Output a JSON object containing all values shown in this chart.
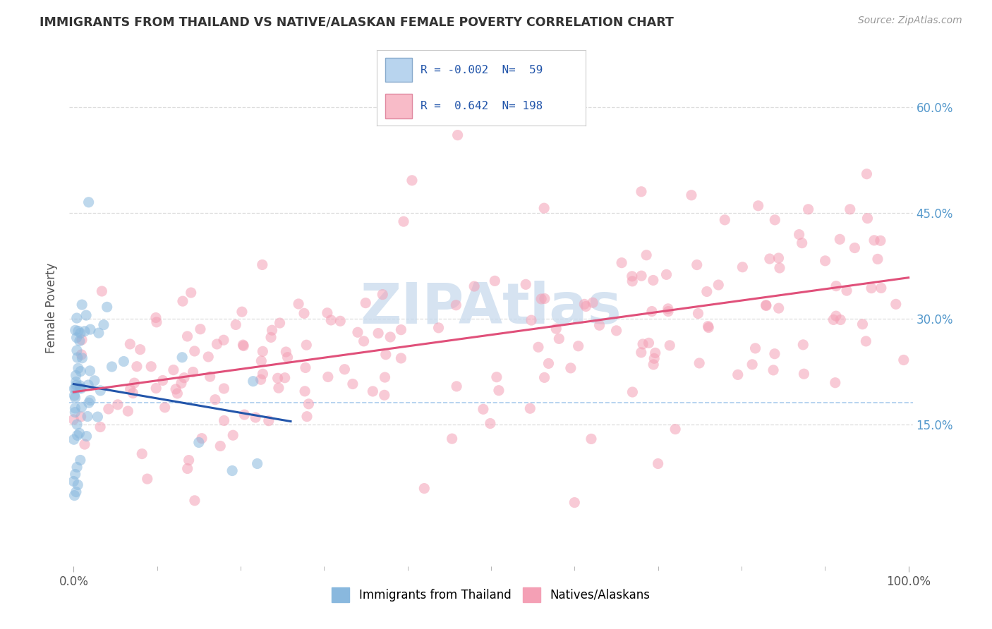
{
  "title": "IMMIGRANTS FROM THAILAND VS NATIVE/ALASKAN FEMALE POVERTY CORRELATION CHART",
  "source": "Source: ZipAtlas.com",
  "ylabel": "Female Poverty",
  "blue_scatter_color": "#89b8de",
  "pink_scatter_color": "#f4a0b5",
  "blue_line_color": "#2255aa",
  "pink_line_color": "#e0507a",
  "dashed_line_color": "#aaccee",
  "watermark": "ZIPAtlas",
  "watermark_color": "#c5d8ec",
  "background_color": "#ffffff",
  "right_tick_color": "#5599cc",
  "ytick_vals": [
    0.15,
    0.3,
    0.45,
    0.6
  ],
  "ytick_labels": [
    "15.0%",
    "30.0%",
    "45.0%",
    "60.0%"
  ],
  "ylim": [
    -0.05,
    0.68
  ],
  "xlim": [
    -0.005,
    1.005
  ],
  "legend_text1": "R = -0.002  N=  59",
  "legend_text2": "R =  0.642  N= 198",
  "scatter_size": 120,
  "scatter_alpha": 0.55,
  "n_blue": 59,
  "n_pink": 198
}
